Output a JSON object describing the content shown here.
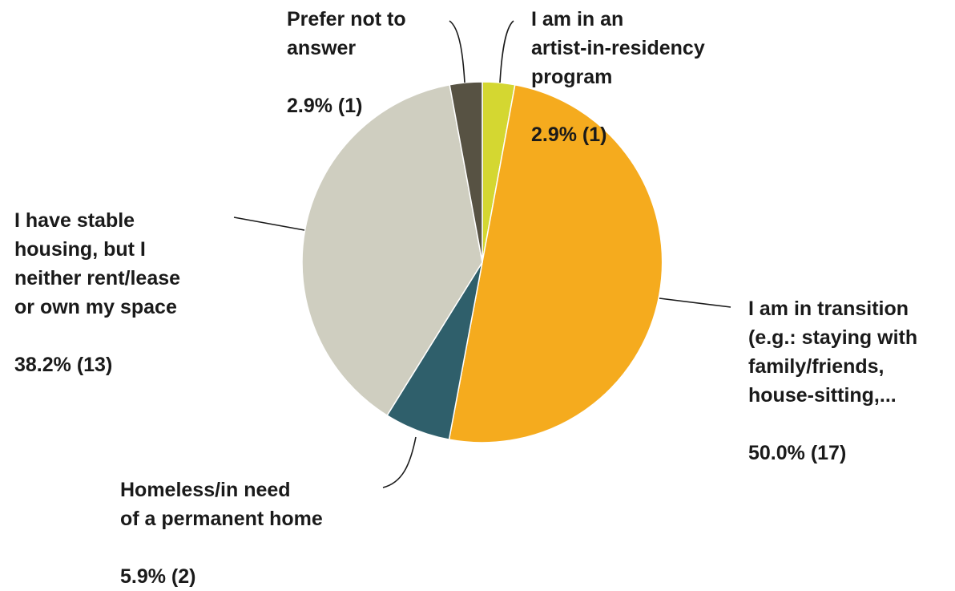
{
  "chart_data": {
    "type": "pie",
    "slices": [
      {
        "label_lines": [
          "I am in an",
          "artist-in-residency",
          "program"
        ],
        "value": 2.9,
        "count": 1,
        "value_label": "2.9% (1)",
        "color": "#d4d731"
      },
      {
        "label_lines": [
          "I am in transition",
          "(e.g.: staying with",
          "family/friends,",
          "house-sitting,..."
        ],
        "value": 50.0,
        "count": 17,
        "value_label": "50.0% (17)",
        "color": "#f5ab1e"
      },
      {
        "label_lines": [
          "Homeless/in need",
          "of a permanent home"
        ],
        "value": 5.9,
        "count": 2,
        "value_label": "5.9% (2)",
        "color": "#2f5f6b"
      },
      {
        "label_lines": [
          "I have stable",
          "housing, but I",
          "neither rent/lease",
          "or own my space"
        ],
        "value": 38.2,
        "count": 13,
        "value_label": "38.2% (13)",
        "color": "#cfcec0"
      },
      {
        "label_lines": [
          "Prefer not to",
          "answer"
        ],
        "value": 2.9,
        "count": 1,
        "value_label": "2.9% (1)",
        "color": "#575243"
      }
    ]
  }
}
